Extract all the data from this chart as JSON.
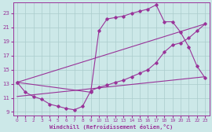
{
  "xlabel": "Windchill (Refroidissement éolien,°C)",
  "bg_color": "#cce8e8",
  "grid_color": "#aacccc",
  "line_color": "#993399",
  "xlim": [
    -0.5,
    23.5
  ],
  "ylim": [
    8.5,
    24.5
  ],
  "xticks": [
    0,
    1,
    2,
    3,
    4,
    5,
    6,
    7,
    8,
    9,
    10,
    11,
    12,
    13,
    14,
    15,
    16,
    17,
    18,
    19,
    20,
    21,
    22,
    23
  ],
  "yticks": [
    9,
    11,
    13,
    15,
    17,
    19,
    21,
    23
  ],
  "line1_x": [
    0,
    1,
    2,
    3,
    4,
    5,
    6,
    7,
    8,
    9,
    10,
    11,
    12,
    13,
    14,
    15,
    16,
    17,
    18,
    19,
    20,
    21,
    22,
    23
  ],
  "line1_y": [
    13.2,
    11.8,
    11.2,
    10.8,
    10.1,
    9.8,
    9.5,
    9.3,
    9.8,
    12.0,
    12.5,
    12.8,
    13.2,
    13.5,
    14.0,
    14.5,
    15.0,
    16.0,
    17.5,
    18.5,
    18.8,
    19.5,
    20.5,
    21.5
  ],
  "line2_x": [
    0,
    9,
    10,
    11,
    12,
    13,
    14,
    15,
    16,
    17,
    18,
    19,
    20,
    21,
    22,
    23
  ],
  "line2_y": [
    13.2,
    11.8,
    20.5,
    22.2,
    22.4,
    22.6,
    23.0,
    23.3,
    23.6,
    24.2,
    21.8,
    21.8,
    20.3,
    18.2,
    15.5,
    13.8
  ],
  "line3_x": [
    0,
    23
  ],
  "line3_y": [
    11.2,
    14.0
  ],
  "line4_x": [
    0,
    23
  ],
  "line4_y": [
    13.2,
    21.5
  ]
}
